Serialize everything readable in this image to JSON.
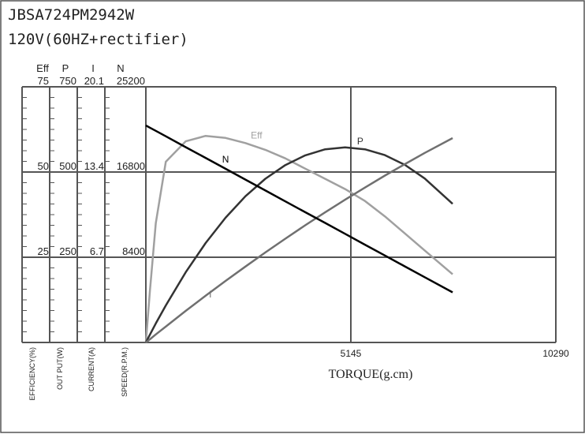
{
  "chart_data": {
    "type": "line",
    "title": "JBSA724PM2942W",
    "subtitle": "120V(60HZ+rectifier)",
    "x_label": "TORQUE(g.cm)",
    "xlim": [
      0,
      10290
    ],
    "xticks": [
      5145,
      10290
    ],
    "grid": true,
    "x": [
      0,
      100,
      250,
      500,
      1000,
      1500,
      2000,
      2500,
      3000,
      3500,
      4000,
      4500,
      5000,
      5500,
      6000,
      6500,
      7000,
      7700
    ],
    "series": [
      {
        "name": "Eff",
        "axis_label": "EFFICIENCY(%)",
        "color": "#a0a0a0",
        "ylim": [
          0,
          75
        ],
        "yticks": [
          25,
          50,
          75
        ],
        "values": [
          0,
          15,
          35,
          53,
          59,
          60.6,
          60,
          58.5,
          56.5,
          54,
          51,
          48,
          45,
          41.5,
          37,
          32,
          27,
          20
        ]
      },
      {
        "name": "P",
        "axis_label": "OUT PUT(W)",
        "color": "#333333",
        "ylim": [
          0,
          750
        ],
        "yticks": [
          250,
          500,
          750
        ],
        "values": [
          0,
          22.6,
          55.7,
          108.6,
          205.7,
          291.6,
          366,
          428.9,
          480.3,
          520.3,
          548.9,
          566.6,
          572.3,
          566.7,
          549.6,
          521,
          481.1,
          406.6
        ]
      },
      {
        "name": "I",
        "axis_label": "CURRENT(A)",
        "color": "#707070",
        "ylim": [
          0,
          20.1
        ],
        "yticks": [
          6.7,
          13.4,
          20.1
        ],
        "values": [
          0,
          0.25,
          0.63,
          1.25,
          2.48,
          3.67,
          4.84,
          5.97,
          7.08,
          8.16,
          9.21,
          10.23,
          11.22,
          12.18,
          13.12,
          14.02,
          14.9,
          16.07
        ]
      },
      {
        "name": "N",
        "axis_label": "SPEED(R.P.M.)",
        "color": "#000000",
        "ylim": [
          0,
          25200
        ],
        "yticks": [
          8400,
          16800,
          25200
        ],
        "values": [
          21390,
          21175,
          20860,
          20320,
          19250,
          18190,
          17120,
          16050,
          14980,
          13910,
          12840,
          11780,
          10710,
          9640,
          8570,
          7500,
          6430,
          4940
        ]
      }
    ]
  }
}
